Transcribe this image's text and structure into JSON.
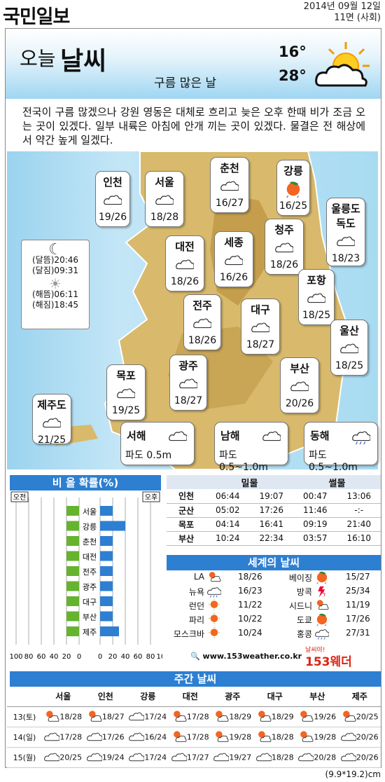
{
  "header": {
    "logo": "국민일보",
    "date": "2014년 09월 12일",
    "page": "11면 (사회)"
  },
  "today": {
    "title_small": "오늘",
    "title_big": "날씨",
    "summary": "구름 많은 날",
    "low": "16°",
    "high": "28°",
    "description": "전국이 구름 많겠으나 강원 영동은 대체로 흐리고 늦은 오후 한때 비가 조금 오는 곳이 있겠다. 일부 내륙은 아침에 안개 끼는 곳이 있겠다. 물결은 전 해상에서 약간 높게 일겠다."
  },
  "cities": [
    {
      "name": "인천",
      "temp": "19/26",
      "icon": "cloud-icon"
    },
    {
      "name": "서울",
      "temp": "18/28",
      "icon": "cloud-icon"
    },
    {
      "name": "춘천",
      "temp": "16/27",
      "icon": "cloud-icon"
    },
    {
      "name": "강릉",
      "temp": "16/25",
      "icon": "sun-cloud-rain-icon"
    },
    {
      "name": "울릉도",
      "name2": "독도",
      "temp": "18/23",
      "icon": "cloud-icon"
    },
    {
      "name": "대전",
      "temp": "18/26",
      "icon": "cloud-icon"
    },
    {
      "name": "세종",
      "temp": "16/26",
      "icon": "cloud-icon"
    },
    {
      "name": "청주",
      "temp": "18/26",
      "icon": "cloud-icon"
    },
    {
      "name": "포항",
      "temp": "18/25",
      "icon": "cloud-icon"
    },
    {
      "name": "전주",
      "temp": "18/26",
      "icon": "cloud-icon"
    },
    {
      "name": "대구",
      "temp": "18/27",
      "icon": "cloud-icon"
    },
    {
      "name": "울산",
      "temp": "18/25",
      "icon": "cloud-icon"
    },
    {
      "name": "목포",
      "temp": "19/25",
      "icon": "cloud-icon"
    },
    {
      "name": "광주",
      "temp": "18/27",
      "icon": "cloud-icon"
    },
    {
      "name": "부산",
      "temp": "20/26",
      "icon": "cloud-icon"
    },
    {
      "name": "제주도",
      "temp": "21/25",
      "icon": "cloud-icon"
    }
  ],
  "seas": [
    {
      "name": "서해",
      "wave": "파도  0.5m",
      "icon": "cloud-icon"
    },
    {
      "name": "남해",
      "wave": "파도 0.5~1.0m",
      "icon": "cloud-icon"
    },
    {
      "name": "동해",
      "wave": "파도 0.5~1.0m",
      "icon": "rain-icon"
    }
  ],
  "astro": {
    "moonrise": "(달뜸)20:46",
    "moonset": "(달짐)09:31",
    "sunrise": "(해뜸)06:11",
    "sunset": "(해짐)18:45"
  },
  "rain_prob": {
    "title": "비 올 확률(%)",
    "am_label": "오전",
    "pm_label": "오후",
    "cities": [
      "서울",
      "강릉",
      "춘천",
      "대전",
      "전주",
      "광주",
      "대구",
      "부산",
      "제주"
    ],
    "am": [
      20,
      20,
      20,
      20,
      20,
      20,
      20,
      20,
      20
    ],
    "pm": [
      20,
      40,
      20,
      20,
      20,
      20,
      20,
      20,
      30
    ],
    "axis_left": [
      "100",
      "80",
      "60",
      "40",
      "20",
      "0"
    ],
    "axis_right": [
      "0",
      "20",
      "40",
      "60",
      "80",
      "100"
    ]
  },
  "tide": {
    "headers": [
      "밀물",
      "썰물"
    ],
    "rows": [
      {
        "city": "인천",
        "v": [
          "06:44",
          "19:07",
          "00:47",
          "13:06"
        ]
      },
      {
        "city": "군산",
        "v": [
          "05:02",
          "17:26",
          "11:46",
          "-:-"
        ]
      },
      {
        "city": "목포",
        "v": [
          "04:14",
          "16:41",
          "09:19",
          "21:40"
        ]
      },
      {
        "city": "부산",
        "v": [
          "10:24",
          "22:34",
          "03:57",
          "16:10"
        ]
      }
    ]
  },
  "world": {
    "title": "세계의 날씨",
    "left": [
      {
        "city": "LA",
        "temp": "18/26",
        "icon": "sun-cloud-icon"
      },
      {
        "city": "뉴욕",
        "temp": "16/23",
        "icon": "rain-icon"
      },
      {
        "city": "런던",
        "temp": "11/22",
        "icon": "sun-icon"
      },
      {
        "city": "파리",
        "temp": "10/22",
        "icon": "sun-icon"
      },
      {
        "city": "모스크바",
        "temp": "10/24",
        "icon": "sun-icon"
      }
    ],
    "right": [
      {
        "city": "베이징",
        "temp": "15/27",
        "icon": "sun-cloud-rain-icon"
      },
      {
        "city": "방콕",
        "temp": "25/34",
        "icon": "thunder-icon"
      },
      {
        "city": "시드니",
        "temp": "11/19",
        "icon": "sun-cloud-icon"
      },
      {
        "city": "도쿄",
        "temp": "17/26",
        "icon": "sun-cloud-rain-icon"
      },
      {
        "city": "홍콩",
        "temp": "27/31",
        "icon": "rain-icon"
      }
    ],
    "url": "www.153weather.co.kr",
    "brand_small": "날씨야!",
    "brand": "153웨더"
  },
  "weekly": {
    "title": "주간 날씨",
    "cities": [
      "서울",
      "인천",
      "강릉",
      "대전",
      "광주",
      "대구",
      "부산",
      "제주"
    ],
    "rows": [
      {
        "day": "13(토)",
        "cells": [
          [
            "sun-cloud-icon",
            "18/28"
          ],
          [
            "sun-cloud-icon",
            "18/27"
          ],
          [
            "cloud-icon",
            "17/24"
          ],
          [
            "sun-cloud-icon",
            "17/28"
          ],
          [
            "sun-cloud-icon",
            "18/29"
          ],
          [
            "sun-cloud-icon",
            "18/29"
          ],
          [
            "sun-cloud-icon",
            "19/26"
          ],
          [
            "sun-cloud-icon",
            "20/25"
          ]
        ]
      },
      {
        "day": "14(일)",
        "cells": [
          [
            "cloud-icon",
            "17/28"
          ],
          [
            "cloud-icon",
            "17/26"
          ],
          [
            "cloud-icon",
            "16/24"
          ],
          [
            "sun-cloud-icon",
            "17/28"
          ],
          [
            "sun-cloud-icon",
            "19/28"
          ],
          [
            "sun-cloud-icon",
            "18/28"
          ],
          [
            "sun-cloud-icon",
            "19/28"
          ],
          [
            "cloud-icon",
            "20/26"
          ]
        ]
      },
      {
        "day": "15(월)",
        "cells": [
          [
            "cloud-icon",
            "20/25"
          ],
          [
            "cloud-icon",
            "19/24"
          ],
          [
            "cloud-icon",
            "17/24"
          ],
          [
            "cloud-icon",
            "17/27"
          ],
          [
            "cloud-icon",
            "19/27"
          ],
          [
            "cloud-icon",
            "18/28"
          ],
          [
            "cloud-icon",
            "20/28"
          ],
          [
            "cloud-icon",
            "20/26"
          ]
        ]
      }
    ]
  },
  "footer": "(9.9*19.2)cm"
}
